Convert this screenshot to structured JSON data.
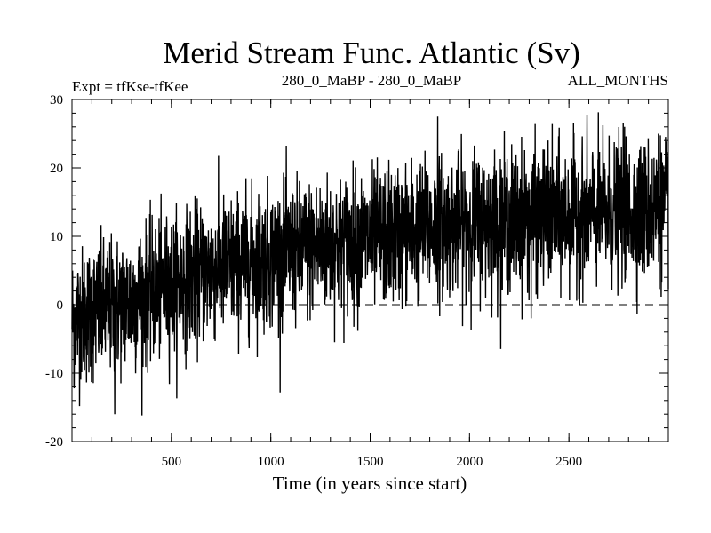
{
  "chart_data": {
    "type": "line",
    "title": "Merid Stream Func. Atlantic (Sv)",
    "subtitle_left": "Expt = tfKse-tfKee",
    "subtitle_center": "280_0_MaBP - 280_0_MaBP",
    "subtitle_right": "ALL_MONTHS",
    "xlabel": "Time (in years since start)",
    "ylabel": "",
    "xlim": [
      0,
      3000
    ],
    "ylim": [
      -20,
      30
    ],
    "x_ticks": [
      500,
      1000,
      1500,
      2000,
      2500
    ],
    "x_tick_labels": [
      "500",
      "1000",
      "1500",
      "2000",
      "2500"
    ],
    "y_ticks": [
      -20,
      -10,
      0,
      10,
      20,
      30
    ],
    "y_tick_labels": [
      "-20",
      "-10",
      "0",
      "10",
      "20",
      "30"
    ],
    "reference_line": {
      "y": 0,
      "style": "dashed"
    },
    "series": [
      {
        "name": "Merid Stream Func. Atlantic",
        "trend_x": [
          0,
          250,
          500,
          750,
          1000,
          1250,
          1500,
          1750,
          2000,
          2250,
          2500,
          2750,
          3000
        ],
        "trend_mean": [
          -2,
          0,
          3,
          5.5,
          7,
          8.5,
          9.5,
          11,
          12,
          12.5,
          13,
          13.5,
          14
        ],
        "noise_amplitude": 5,
        "extremes": [
          {
            "x": 215,
            "y": -16
          },
          {
            "x": 1840,
            "y": 27.5
          },
          {
            "x": 2780,
            "y": 26
          },
          {
            "x": 2950,
            "y": 25
          },
          {
            "x": 2310,
            "y": -2
          },
          {
            "x": 10,
            "y": -12
          }
        ]
      }
    ]
  }
}
